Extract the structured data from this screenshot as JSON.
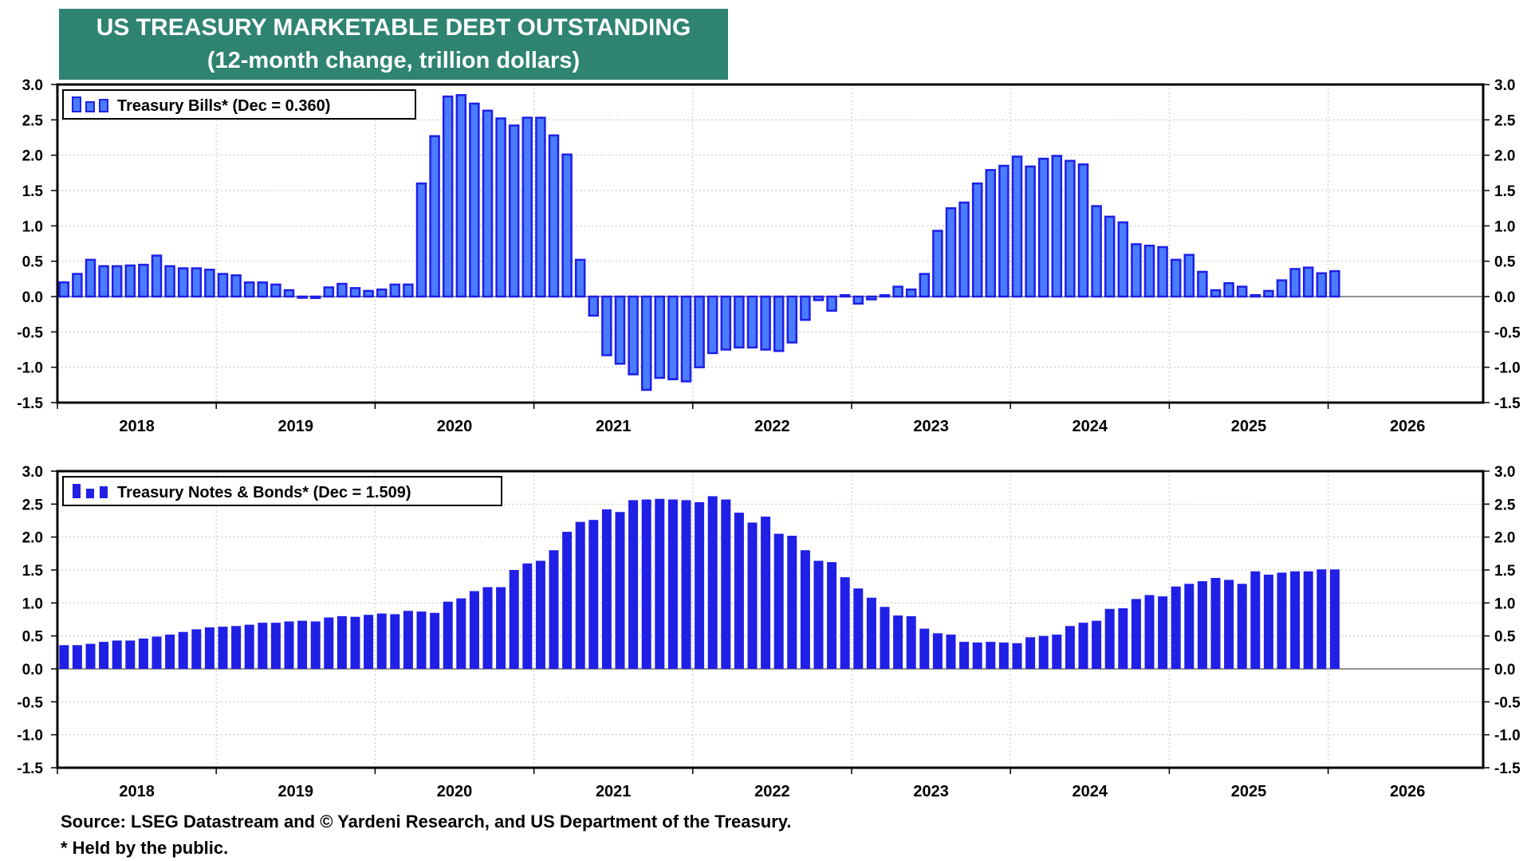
{
  "title": {
    "line1": "US TREASURY MARKETABLE DEBT OUTSTANDING",
    "line2": "(12-month change, trillion dollars)"
  },
  "footer": {
    "source": "Source: LSEG Datastream and © Yardeni Research, and US Department of the Treasury.",
    "note": "* Held by the public."
  },
  "colors": {
    "bar": "#1f1fe6",
    "bar_light": "#4a7cff",
    "frame": "#000000",
    "title_bg": "#2e8371"
  },
  "chart_data": [
    {
      "type": "bar",
      "title": "Treasury Bills* (Dec = 0.360)",
      "legend": "Treasury Bills* (Dec = 0.360)",
      "legend_position": "top-left",
      "x_start": "2018-01",
      "x_ticks": [
        "2018",
        "2019",
        "2020",
        "2021",
        "2022",
        "2023",
        "2024",
        "2025",
        "2026"
      ],
      "ylim": [
        -1.5,
        3.0
      ],
      "y_ticks": [
        "3.0",
        "2.5",
        "2.0",
        "1.5",
        "1.0",
        "0.5",
        "0.0",
        "-0.5",
        "-1.0",
        "-1.5"
      ],
      "grid": true,
      "values": [
        0.2,
        0.32,
        0.52,
        0.43,
        0.43,
        0.44,
        0.45,
        0.58,
        0.43,
        0.4,
        0.4,
        0.38,
        0.32,
        0.3,
        0.2,
        0.2,
        0.17,
        0.09,
        0.0,
        -0.02,
        0.13,
        0.18,
        0.12,
        0.08,
        0.1,
        0.17,
        0.17,
        1.6,
        2.27,
        2.83,
        2.85,
        2.73,
        2.63,
        2.52,
        2.42,
        2.53,
        2.53,
        2.28,
        2.01,
        0.52,
        -0.27,
        -0.83,
        -0.95,
        -1.1,
        -1.32,
        -1.15,
        -1.17,
        -1.2,
        -1.0,
        -0.8,
        -0.75,
        -0.72,
        -0.72,
        -0.75,
        -0.77,
        -0.65,
        -0.33,
        -0.05,
        -0.2,
        0.02,
        -0.1,
        -0.04,
        0.02,
        0.14,
        0.1,
        0.32,
        0.93,
        1.25,
        1.33,
        1.6,
        1.79,
        1.85,
        1.98,
        1.84,
        1.95,
        1.99,
        1.92,
        1.87,
        1.28,
        1.13,
        1.05,
        0.74,
        0.72,
        0.7,
        0.52,
        0.59,
        0.35,
        0.09,
        0.19,
        0.14,
        0.02,
        0.08,
        0.23,
        0.39,
        0.41,
        0.33,
        0.36
      ]
    },
    {
      "type": "bar",
      "title": "Treasury Notes & Bonds* (Dec = 1.509)",
      "legend": "Treasury Notes & Bonds* (Dec = 1.509)",
      "legend_position": "top-left",
      "x_start": "2018-01",
      "x_ticks": [
        "2018",
        "2019",
        "2020",
        "2021",
        "2022",
        "2023",
        "2024",
        "2025",
        "2026"
      ],
      "ylim": [
        -1.5,
        3.0
      ],
      "y_ticks": [
        "3.0",
        "2.5",
        "2.0",
        "1.5",
        "1.0",
        "0.5",
        "0.0",
        "-0.5",
        "-1.0",
        "-1.5"
      ],
      "grid": true,
      "values": [
        0.36,
        0.36,
        0.38,
        0.41,
        0.43,
        0.43,
        0.46,
        0.49,
        0.52,
        0.56,
        0.6,
        0.63,
        0.64,
        0.65,
        0.67,
        0.7,
        0.7,
        0.72,
        0.73,
        0.72,
        0.78,
        0.8,
        0.79,
        0.82,
        0.84,
        0.83,
        0.88,
        0.87,
        0.85,
        1.02,
        1.07,
        1.18,
        1.24,
        1.24,
        1.5,
        1.6,
        1.64,
        1.8,
        2.08,
        2.23,
        2.26,
        2.42,
        2.38,
        2.56,
        2.57,
        2.58,
        2.57,
        2.56,
        2.53,
        2.62,
        2.57,
        2.37,
        2.22,
        2.31,
        2.05,
        2.02,
        1.8,
        1.64,
        1.62,
        1.39,
        1.22,
        1.08,
        0.94,
        0.81,
        0.8,
        0.61,
        0.54,
        0.52,
        0.41,
        0.4,
        0.41,
        0.4,
        0.39,
        0.48,
        0.5,
        0.52,
        0.65,
        0.7,
        0.73,
        0.91,
        0.92,
        1.06,
        1.12,
        1.1,
        1.25,
        1.29,
        1.33,
        1.38,
        1.35,
        1.29,
        1.48,
        1.43,
        1.46,
        1.48,
        1.48,
        1.51,
        1.509
      ]
    }
  ]
}
